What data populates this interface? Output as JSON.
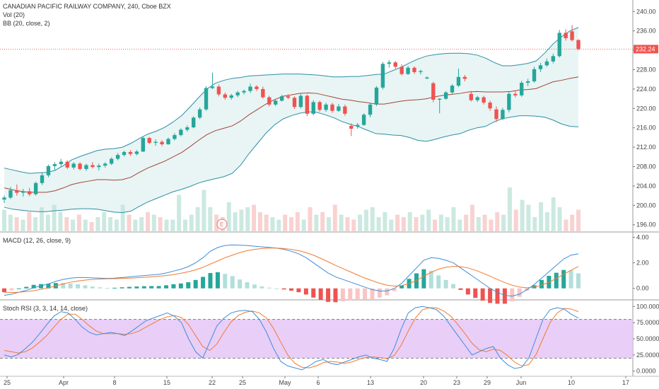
{
  "colors": {
    "up": "#26a69a",
    "down": "#ef5350",
    "bb_line": "#2c8fa6",
    "bb_basis": "#a5433a",
    "bb_fill": "#e8f5f4",
    "macd_line": "#3d8ed8",
    "signal_line": "#f37a2e",
    "stoch_k": "#3d8ed8",
    "stoch_d": "#f37a2e",
    "stoch_band": "#e5c6f7",
    "last_price": "#ef5350",
    "grid": "#e6e6e6"
  },
  "legend": {
    "main_title": "CANADIAN PACIFIC RAILWAY COMPANY, 240, Cboe BZX",
    "vol": "Vol (20)",
    "bb": "BB (20, close, 2)",
    "macd": "MACD (12, 26, close, 9)",
    "stoch": "Stoch RSI (3, 3, 14, 14, close)"
  },
  "earnings_marker": "E",
  "last_price_label": "232.24",
  "chart_data": [
    {
      "type": "candlestick",
      "title": "CANADIAN PACIFIC RAILWAY COMPANY, 240, Cboe BZX",
      "x_tick_labels": [
        "25",
        "Apr",
        "8",
        "15",
        "22",
        "25",
        "May",
        "6",
        "13",
        "20",
        "23",
        "29",
        "Jun",
        "10",
        "17"
      ],
      "y_ticks": [
        196.0,
        200.0,
        204.0,
        208.0,
        212.0,
        216.0,
        220.0,
        224.0,
        228.0,
        232.0,
        236.0,
        240.0
      ],
      "ylim": [
        194.5,
        241.5
      ],
      "last_price": 232.24,
      "bb_upper": [
        207.7,
        207.3,
        206.9,
        206.6,
        206.7,
        206.8,
        207.2,
        208.2,
        209.4,
        210.1,
        210.7,
        211.3,
        211.6,
        211.7,
        212.0,
        212.8,
        213.8,
        214.7,
        215.3,
        216.1,
        217.2,
        218.5,
        220.3,
        222.2,
        224.0,
        225.2,
        225.8,
        226.2,
        226.4,
        226.7,
        226.8,
        226.9,
        227.0,
        227.1,
        227.1,
        227.1,
        227.0,
        226.9,
        226.7,
        226.5,
        226.5,
        226.6,
        226.6,
        226.8,
        227.0,
        227.1,
        227.8,
        228.5,
        229.4,
        230.2,
        230.8,
        231.1,
        231.3,
        231.4,
        231.4,
        231.3,
        231.0,
        230.4,
        229.5,
        228.8,
        228.8,
        229.0,
        229.3,
        229.8,
        231.4,
        233.3,
        234.8,
        236.0,
        236.7
      ],
      "bb_lower": [
        199.6,
        199.2,
        199.0,
        198.8,
        198.7,
        198.7,
        198.9,
        199.0,
        199.2,
        199.3,
        199.3,
        199.2,
        198.9,
        198.6,
        198.5,
        198.8,
        199.8,
        200.7,
        201.4,
        202.1,
        202.8,
        203.3,
        203.9,
        204.6,
        205.1,
        205.5,
        205.9,
        206.6,
        208.3,
        210.7,
        212.8,
        214.9,
        216.6,
        217.8,
        218.5,
        219.0,
        219.3,
        219.2,
        218.7,
        218.1,
        217.3,
        216.7,
        216.2,
        215.5,
        214.8,
        214.7,
        214.5,
        214.4,
        214.0,
        213.4,
        213.2,
        213.6,
        214.1,
        214.5,
        214.8,
        215.5,
        216.0,
        216.3,
        217.2,
        217.9,
        218.2,
        218.5,
        218.5,
        218.4,
        218.2,
        217.6,
        216.8,
        216.3,
        216.2
      ],
      "bb_basis": [
        203.6,
        203.2,
        202.9,
        202.7,
        202.7,
        202.7,
        203.0,
        203.6,
        204.3,
        204.7,
        205.0,
        205.3,
        205.3,
        205.2,
        205.3,
        205.8,
        206.8,
        207.7,
        208.4,
        209.1,
        210.0,
        210.9,
        212.1,
        213.4,
        214.6,
        215.4,
        215.9,
        216.4,
        217.4,
        218.7,
        219.8,
        220.9,
        221.8,
        222.5,
        222.8,
        223.1,
        223.2,
        223.1,
        222.7,
        222.3,
        221.9,
        221.7,
        221.4,
        221.2,
        220.9,
        220.9,
        221.2,
        221.5,
        221.7,
        221.8,
        222.0,
        222.4,
        222.7,
        222.9,
        223.1,
        223.4,
        223.5,
        223.4,
        223.4,
        223.4,
        223.5,
        223.8,
        223.9,
        224.1,
        224.8,
        225.5,
        225.8,
        226.2,
        226.5
      ],
      "candles": [
        {
          "o": 201.2,
          "h": 202.0,
          "l": 200.5,
          "c": 201.6
        },
        {
          "o": 201.6,
          "h": 203.8,
          "l": 201.3,
          "c": 203.1
        },
        {
          "o": 203.1,
          "h": 204.3,
          "l": 202.0,
          "c": 202.6
        },
        {
          "o": 202.6,
          "h": 203.4,
          "l": 201.8,
          "c": 202.9
        },
        {
          "o": 202.9,
          "h": 203.6,
          "l": 201.9,
          "c": 202.3
        },
        {
          "o": 202.3,
          "h": 204.9,
          "l": 202.0,
          "c": 204.6
        },
        {
          "o": 204.6,
          "h": 206.7,
          "l": 204.2,
          "c": 206.2
        },
        {
          "o": 206.2,
          "h": 208.4,
          "l": 205.8,
          "c": 208.1
        },
        {
          "o": 208.1,
          "h": 208.9,
          "l": 207.3,
          "c": 208.5
        },
        {
          "o": 208.5,
          "h": 209.6,
          "l": 207.9,
          "c": 209.0
        },
        {
          "o": 209.0,
          "h": 209.3,
          "l": 207.5,
          "c": 207.8
        },
        {
          "o": 207.8,
          "h": 208.9,
          "l": 207.4,
          "c": 208.6
        },
        {
          "o": 208.6,
          "h": 208.9,
          "l": 207.2,
          "c": 207.5
        },
        {
          "o": 207.5,
          "h": 208.6,
          "l": 207.1,
          "c": 208.3
        },
        {
          "o": 208.3,
          "h": 208.9,
          "l": 207.6,
          "c": 207.9
        },
        {
          "o": 207.9,
          "h": 208.6,
          "l": 207.2,
          "c": 208.2
        },
        {
          "o": 208.2,
          "h": 208.9,
          "l": 207.8,
          "c": 208.6
        },
        {
          "o": 208.6,
          "h": 209.9,
          "l": 208.3,
          "c": 209.6
        },
        {
          "o": 209.6,
          "h": 210.8,
          "l": 209.3,
          "c": 210.4
        },
        {
          "o": 210.4,
          "h": 211.3,
          "l": 210.1,
          "c": 211.0
        },
        {
          "o": 211.0,
          "h": 211.4,
          "l": 210.2,
          "c": 210.6
        },
        {
          "o": 210.6,
          "h": 211.4,
          "l": 210.3,
          "c": 211.1
        },
        {
          "o": 211.1,
          "h": 214.2,
          "l": 211.0,
          "c": 213.9
        },
        {
          "o": 213.9,
          "h": 214.1,
          "l": 212.6,
          "c": 212.9
        },
        {
          "o": 212.9,
          "h": 213.6,
          "l": 212.3,
          "c": 213.1
        },
        {
          "o": 213.1,
          "h": 213.5,
          "l": 212.2,
          "c": 212.6
        },
        {
          "o": 212.6,
          "h": 214.0,
          "l": 212.5,
          "c": 213.7
        },
        {
          "o": 213.7,
          "h": 214.9,
          "l": 213.4,
          "c": 214.5
        },
        {
          "o": 214.5,
          "h": 215.9,
          "l": 214.2,
          "c": 215.6
        },
        {
          "o": 215.6,
          "h": 216.5,
          "l": 215.2,
          "c": 216.1
        },
        {
          "o": 216.1,
          "h": 218.4,
          "l": 215.9,
          "c": 218.1
        },
        {
          "o": 218.1,
          "h": 220.2,
          "l": 217.8,
          "c": 219.8
        },
        {
          "o": 219.8,
          "h": 224.6,
          "l": 219.5,
          "c": 224.2
        },
        {
          "o": 224.2,
          "h": 227.4,
          "l": 224.0,
          "c": 224.5
        },
        {
          "o": 224.5,
          "h": 224.9,
          "l": 222.5,
          "c": 222.9
        },
        {
          "o": 222.9,
          "h": 223.3,
          "l": 221.8,
          "c": 222.2
        },
        {
          "o": 222.2,
          "h": 223.0,
          "l": 221.8,
          "c": 222.7
        },
        {
          "o": 222.7,
          "h": 223.6,
          "l": 222.3,
          "c": 223.3
        },
        {
          "o": 223.3,
          "h": 223.9,
          "l": 222.9,
          "c": 223.6
        },
        {
          "o": 223.6,
          "h": 225.1,
          "l": 223.2,
          "c": 224.5
        },
        {
          "o": 224.5,
          "h": 224.8,
          "l": 223.6,
          "c": 224.0
        },
        {
          "o": 224.0,
          "h": 224.5,
          "l": 222.0,
          "c": 222.3
        },
        {
          "o": 222.3,
          "h": 222.6,
          "l": 220.4,
          "c": 220.8
        },
        {
          "o": 220.8,
          "h": 221.9,
          "l": 220.5,
          "c": 221.6
        },
        {
          "o": 221.6,
          "h": 222.8,
          "l": 221.4,
          "c": 222.5
        },
        {
          "o": 222.5,
          "h": 222.9,
          "l": 221.9,
          "c": 222.2
        },
        {
          "o": 222.2,
          "h": 222.5,
          "l": 219.9,
          "c": 220.3
        },
        {
          "o": 220.3,
          "h": 223.0,
          "l": 220.0,
          "c": 222.6
        },
        {
          "o": 222.6,
          "h": 222.9,
          "l": 218.4,
          "c": 218.9
        },
        {
          "o": 218.9,
          "h": 221.7,
          "l": 218.6,
          "c": 221.3
        },
        {
          "o": 221.3,
          "h": 221.6,
          "l": 219.3,
          "c": 219.7
        },
        {
          "o": 219.7,
          "h": 221.2,
          "l": 219.3,
          "c": 220.8
        },
        {
          "o": 220.8,
          "h": 221.2,
          "l": 219.1,
          "c": 219.5
        },
        {
          "o": 219.5,
          "h": 220.9,
          "l": 219.3,
          "c": 220.4
        },
        {
          "o": 220.4,
          "h": 220.8,
          "l": 218.5,
          "c": 218.9
        },
        {
          "o": 216.4,
          "h": 216.9,
          "l": 214.3,
          "c": 215.8
        },
        {
          "o": 216.3,
          "h": 217.0,
          "l": 215.8,
          "c": 216.6
        },
        {
          "o": 216.6,
          "h": 219.0,
          "l": 216.4,
          "c": 218.7
        },
        {
          "o": 218.7,
          "h": 221.2,
          "l": 218.2,
          "c": 220.8
        },
        {
          "o": 220.8,
          "h": 224.6,
          "l": 220.5,
          "c": 224.3
        },
        {
          "o": 224.3,
          "h": 229.6,
          "l": 223.9,
          "c": 229.2
        },
        {
          "o": 229.2,
          "h": 230.0,
          "l": 228.4,
          "c": 229.5
        },
        {
          "o": 229.5,
          "h": 229.8,
          "l": 228.2,
          "c": 228.6
        },
        {
          "o": 228.6,
          "h": 229.1,
          "l": 226.8,
          "c": 227.1
        },
        {
          "o": 227.1,
          "h": 228.8,
          "l": 226.9,
          "c": 228.4
        },
        {
          "o": 228.4,
          "h": 228.7,
          "l": 227.1,
          "c": 227.5
        },
        {
          "o": 227.5,
          "h": 228.0,
          "l": 227.0,
          "c": 227.7
        },
        {
          "o": 226.2,
          "h": 226.6,
          "l": 226.0,
          "c": 226.4
        },
        {
          "o": 225.2,
          "h": 225.5,
          "l": 221.3,
          "c": 221.8
        },
        {
          "o": 221.8,
          "h": 222.1,
          "l": 219.0,
          "c": 222.0
        }
      ],
      "candles_tail": [
        {
          "o": 222.0,
          "h": 223.6,
          "l": 221.8,
          "c": 223.3
        },
        {
          "o": 223.3,
          "h": 225.0,
          "l": 223.0,
          "c": 224.7
        },
        {
          "o": 224.7,
          "h": 228.2,
          "l": 224.4,
          "c": 226.5
        },
        {
          "o": 226.5,
          "h": 226.9,
          "l": 225.6,
          "c": 226.1
        },
        {
          "o": 223.0,
          "h": 223.6,
          "l": 221.4,
          "c": 221.7
        },
        {
          "o": 221.7,
          "h": 222.6,
          "l": 221.3,
          "c": 222.3
        },
        {
          "o": 222.3,
          "h": 222.6,
          "l": 220.8,
          "c": 221.2
        },
        {
          "o": 221.2,
          "h": 221.6,
          "l": 219.5,
          "c": 220.0
        },
        {
          "o": 219.8,
          "h": 220.4,
          "l": 217.2,
          "c": 217.8
        },
        {
          "o": 217.8,
          "h": 220.1,
          "l": 217.6,
          "c": 219.7
        },
        {
          "o": 219.7,
          "h": 223.4,
          "l": 219.2,
          "c": 223.0
        },
        {
          "o": 223.0,
          "h": 223.6,
          "l": 222.3,
          "c": 222.7
        },
        {
          "o": 222.7,
          "h": 225.7,
          "l": 222.4,
          "c": 225.3
        },
        {
          "o": 225.3,
          "h": 226.1,
          "l": 224.6,
          "c": 225.6
        },
        {
          "o": 225.6,
          "h": 228.6,
          "l": 225.3,
          "c": 228.1
        },
        {
          "o": 228.1,
          "h": 229.4,
          "l": 227.5,
          "c": 228.9
        },
        {
          "o": 228.9,
          "h": 230.3,
          "l": 228.6,
          "c": 229.7
        },
        {
          "o": 229.7,
          "h": 231.3,
          "l": 229.3,
          "c": 230.8
        },
        {
          "o": 230.8,
          "h": 236.2,
          "l": 230.5,
          "c": 235.6
        },
        {
          "o": 235.6,
          "h": 236.3,
          "l": 234.0,
          "c": 234.5
        },
        {
          "o": 235.9,
          "h": 237.2,
          "l": 233.8,
          "c": 234.1
        },
        {
          "o": 234.1,
          "h": 234.3,
          "l": 232.0,
          "c": 232.24
        }
      ],
      "volume": [
        18,
        14,
        12,
        10,
        16,
        12,
        20,
        14,
        22,
        16,
        12,
        10,
        14,
        10,
        8,
        12,
        16,
        12,
        10,
        22,
        14,
        10,
        12,
        16,
        14,
        12,
        10,
        10,
        30,
        10,
        14,
        20,
        34,
        20,
        14,
        12,
        24,
        16,
        18,
        20,
        22,
        16,
        14,
        12,
        10,
        14,
        12,
        16,
        10,
        20,
        14,
        16,
        12,
        22,
        14,
        12,
        10,
        14,
        18,
        20,
        12,
        16,
        10,
        14,
        12,
        16,
        12,
        14,
        18,
        10,
        14,
        12,
        20,
        10,
        14,
        22,
        12,
        14,
        10,
        16,
        14,
        36,
        18,
        26,
        22,
        12,
        24,
        16,
        28,
        20,
        10,
        14,
        18
      ],
      "macd_line": [
        -0.55,
        -0.45,
        -0.3,
        -0.15,
        0.05,
        0.2,
        0.35,
        0.55,
        0.7,
        0.8,
        0.85,
        0.85,
        0.82,
        0.8,
        0.78,
        0.8,
        0.85,
        0.9,
        0.95,
        1.0,
        1.05,
        1.1,
        1.2,
        1.35,
        1.5,
        1.7,
        2.0,
        2.4,
        2.9,
        3.2,
        3.35,
        3.4,
        3.38,
        3.35,
        3.3,
        3.25,
        3.2,
        3.15,
        3.05,
        2.9,
        2.7,
        2.4,
        2.0,
        1.6,
        1.2,
        0.9,
        0.7,
        0.5,
        0.3,
        0.1,
        -0.1,
        -0.2,
        -0.2,
        0.0,
        0.4,
        1.0,
        1.6,
        2.2,
        2.4,
        2.35,
        2.2,
        2.0,
        1.6,
        1.2,
        0.8,
        0.4,
        0.0,
        -0.3,
        -0.55,
        -0.6,
        -0.45,
        -0.1,
        0.3,
        0.8,
        1.3,
        1.8,
        2.3,
        2.6,
        2.7
      ],
      "signal_line": [
        -0.3,
        -0.32,
        -0.3,
        -0.25,
        -0.18,
        -0.08,
        0.05,
        0.2,
        0.35,
        0.48,
        0.58,
        0.65,
        0.7,
        0.73,
        0.75,
        0.76,
        0.78,
        0.8,
        0.83,
        0.86,
        0.9,
        0.95,
        1.0,
        1.08,
        1.18,
        1.3,
        1.45,
        1.65,
        1.9,
        2.15,
        2.4,
        2.6,
        2.8,
        2.95,
        3.05,
        3.12,
        3.15,
        3.15,
        3.12,
        3.05,
        2.95,
        2.8,
        2.6,
        2.35,
        2.08,
        1.8,
        1.55,
        1.3,
        1.05,
        0.8,
        0.6,
        0.4,
        0.25,
        0.18,
        0.22,
        0.38,
        0.62,
        0.95,
        1.25,
        1.5,
        1.65,
        1.72,
        1.7,
        1.6,
        1.42,
        1.2,
        0.95,
        0.7,
        0.45,
        0.25,
        0.1,
        0.05,
        0.1,
        0.25,
        0.48,
        0.78,
        1.1,
        1.42,
        1.72
      ],
      "stoch_k": [
        25,
        22,
        26,
        35,
        45,
        58,
        72,
        85,
        92,
        90,
        80,
        68,
        60,
        56,
        58,
        60,
        58,
        55,
        62,
        70,
        78,
        82,
        86,
        90,
        85,
        75,
        50,
        30,
        20,
        45,
        70,
        82,
        90,
        93,
        94,
        92,
        80,
        60,
        35,
        15,
        8,
        5,
        2,
        8,
        15,
        18,
        12,
        10,
        14,
        18,
        22,
        25,
        20,
        18,
        15,
        35,
        65,
        90,
        98,
        100,
        98,
        95,
        85,
        70,
        55,
        40,
        25,
        30,
        35,
        38,
        20,
        10,
        4,
        6,
        20,
        50,
        80,
        95,
        98,
        96,
        88,
        82
      ],
      "stoch_d": [
        32,
        30,
        28,
        30,
        36,
        45,
        55,
        68,
        80,
        88,
        88,
        80,
        70,
        62,
        58,
        58,
        58,
        57,
        58,
        62,
        68,
        74,
        80,
        84,
        86,
        83,
        72,
        55,
        38,
        32,
        42,
        60,
        76,
        86,
        91,
        93,
        90,
        82,
        66,
        45,
        25,
        12,
        6,
        5,
        8,
        13,
        15,
        14,
        12,
        14,
        18,
        21,
        22,
        21,
        19,
        24,
        40,
        62,
        82,
        95,
        98,
        98,
        93,
        85,
        72,
        58,
        43,
        33,
        30,
        34,
        32,
        24,
        14,
        8,
        10,
        25,
        50,
        75,
        90,
        97,
        96,
        92
      ]
    }
  ]
}
